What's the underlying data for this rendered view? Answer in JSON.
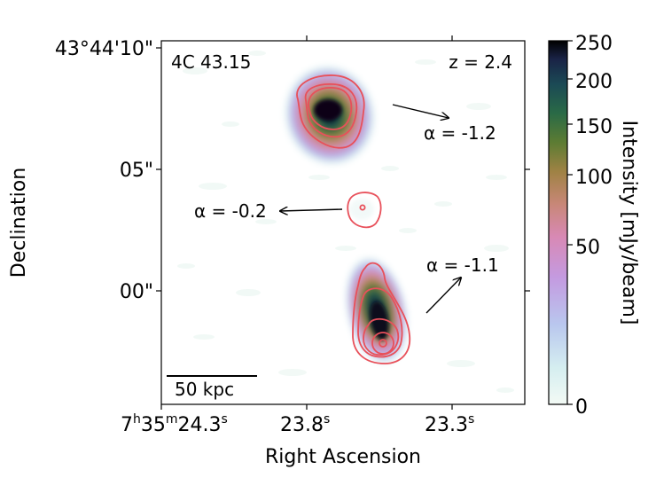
{
  "figure": {
    "source_name": "4C 43.15",
    "redshift": "z = 2.4",
    "x_axis_label": "Right Ascension",
    "y_axis_label": "Declination",
    "x_ticks": [
      {
        "main": "7",
        "sup1": "h",
        "mid": "35",
        "sup2": "m",
        "sec": "24.3",
        "sup3": "s"
      },
      {
        "main": "23.8",
        "sup": "s"
      },
      {
        "main": "23.3",
        "sup": "s"
      }
    ],
    "y_ticks": [
      "43°44'10\"",
      "05\"",
      "00\""
    ],
    "scale_bar_label": "50 kpc",
    "colorbar": {
      "label": "Intensity [mJy/beam]",
      "ticks": [
        "250",
        "200",
        "150",
        "100",
        "50",
        "0"
      ]
    },
    "annotations": [
      {
        "name": "alpha-north",
        "text": "α = -1.2"
      },
      {
        "name": "alpha-core",
        "text": "α = -0.2"
      },
      {
        "name": "alpha-south",
        "text": "α = -1.1"
      }
    ],
    "colors": {
      "contour": "#e8505a",
      "frame": "#000000",
      "background": "#ffffff"
    }
  }
}
